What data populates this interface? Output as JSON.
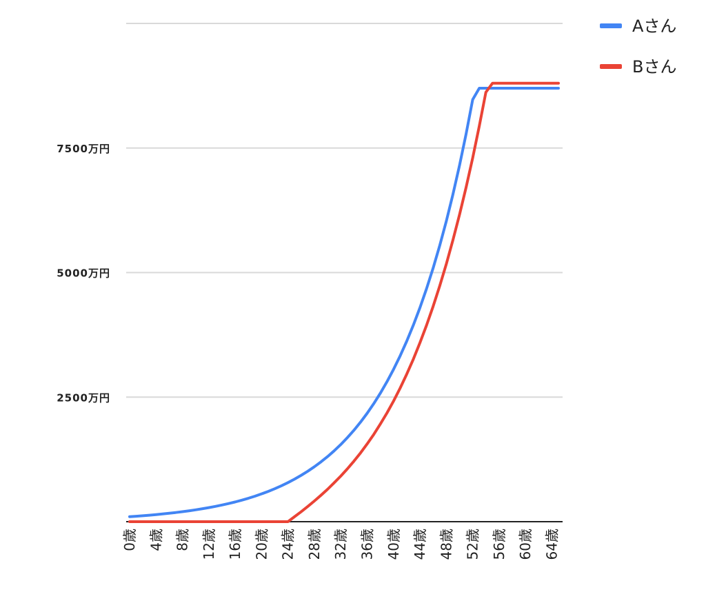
{
  "chart_data": {
    "type": "line",
    "x": [
      "0歳",
      "1歳",
      "2歳",
      "3歳",
      "4歳",
      "5歳",
      "6歳",
      "7歳",
      "8歳",
      "9歳",
      "10歳",
      "11歳",
      "12歳",
      "13歳",
      "14歳",
      "15歳",
      "16歳",
      "17歳",
      "18歳",
      "19歳",
      "20歳",
      "21歳",
      "22歳",
      "23歳",
      "24歳",
      "25歳",
      "26歳",
      "27歳",
      "28歳",
      "29歳",
      "30歳",
      "31歳",
      "32歳",
      "33歳",
      "34歳",
      "35歳",
      "36歳",
      "37歳",
      "38歳",
      "39歳",
      "40歳",
      "41歳",
      "42歳",
      "43歳",
      "44歳",
      "45歳",
      "46歳",
      "47歳",
      "48歳",
      "49歳",
      "50歳",
      "51歳",
      "52歳",
      "53歳",
      "54歳",
      "55歳",
      "56歳",
      "57歳",
      "58歳",
      "59歳",
      "60歳",
      "61歳",
      "62歳",
      "63歳",
      "64歳",
      "65歳"
    ],
    "tick_labels": [
      "0歳",
      "4歳",
      "8歳",
      "12歳",
      "16歳",
      "20歳",
      "24歳",
      "28歳",
      "32歳",
      "36歳",
      "40歳",
      "44歳",
      "48歳",
      "52歳",
      "56歳",
      "60歳",
      "64歳"
    ],
    "y_ticks": [
      {
        "value": 2500,
        "label": "2500万円"
      },
      {
        "value": 5000,
        "label": "5000万円"
      },
      {
        "value": 7500,
        "label": "7500万円"
      },
      {
        "value": 10000,
        "label": ""
      }
    ],
    "ylim": [
      0,
      10000
    ],
    "grid": true,
    "legend_position": "top-right",
    "series": [
      {
        "name": "Aさん",
        "color": "#4285f4",
        "values": [
          100,
          109,
          119,
          130,
          142,
          155,
          169,
          184,
          200,
          218,
          238,
          259,
          282,
          307,
          334,
          364,
          396,
          432,
          470,
          512,
          558,
          607,
          661,
          720,
          784,
          854,
          930,
          1012,
          1102,
          1200,
          1306,
          1422,
          1548,
          1686,
          1835,
          1998,
          2175,
          2368,
          2578,
          2807,
          3056,
          3327,
          3622,
          3943,
          4293,
          4674,
          5088,
          5540,
          6031,
          6566,
          7148,
          7782,
          8472,
          8700,
          8700,
          8700,
          8700,
          8700,
          8700,
          8700,
          8700,
          8700,
          8700,
          8700,
          8700,
          8700
        ]
      },
      {
        "name": "Bさん",
        "color": "#ea4335",
        "values": [
          0,
          0,
          0,
          0,
          0,
          0,
          0,
          0,
          0,
          0,
          0,
          0,
          0,
          0,
          0,
          0,
          0,
          0,
          0,
          0,
          0,
          0,
          0,
          0,
          0,
          100,
          200,
          305,
          415,
          530,
          650,
          780,
          915,
          1060,
          1215,
          1380,
          1560,
          1750,
          1960,
          2180,
          2420,
          2680,
          2960,
          3260,
          3590,
          3940,
          4320,
          4730,
          5170,
          5650,
          6160,
          6710,
          7300,
          7940,
          8620,
          8800,
          8800,
          8800,
          8800,
          8800,
          8800,
          8800,
          8800,
          8800,
          8800,
          8800
        ]
      }
    ]
  }
}
